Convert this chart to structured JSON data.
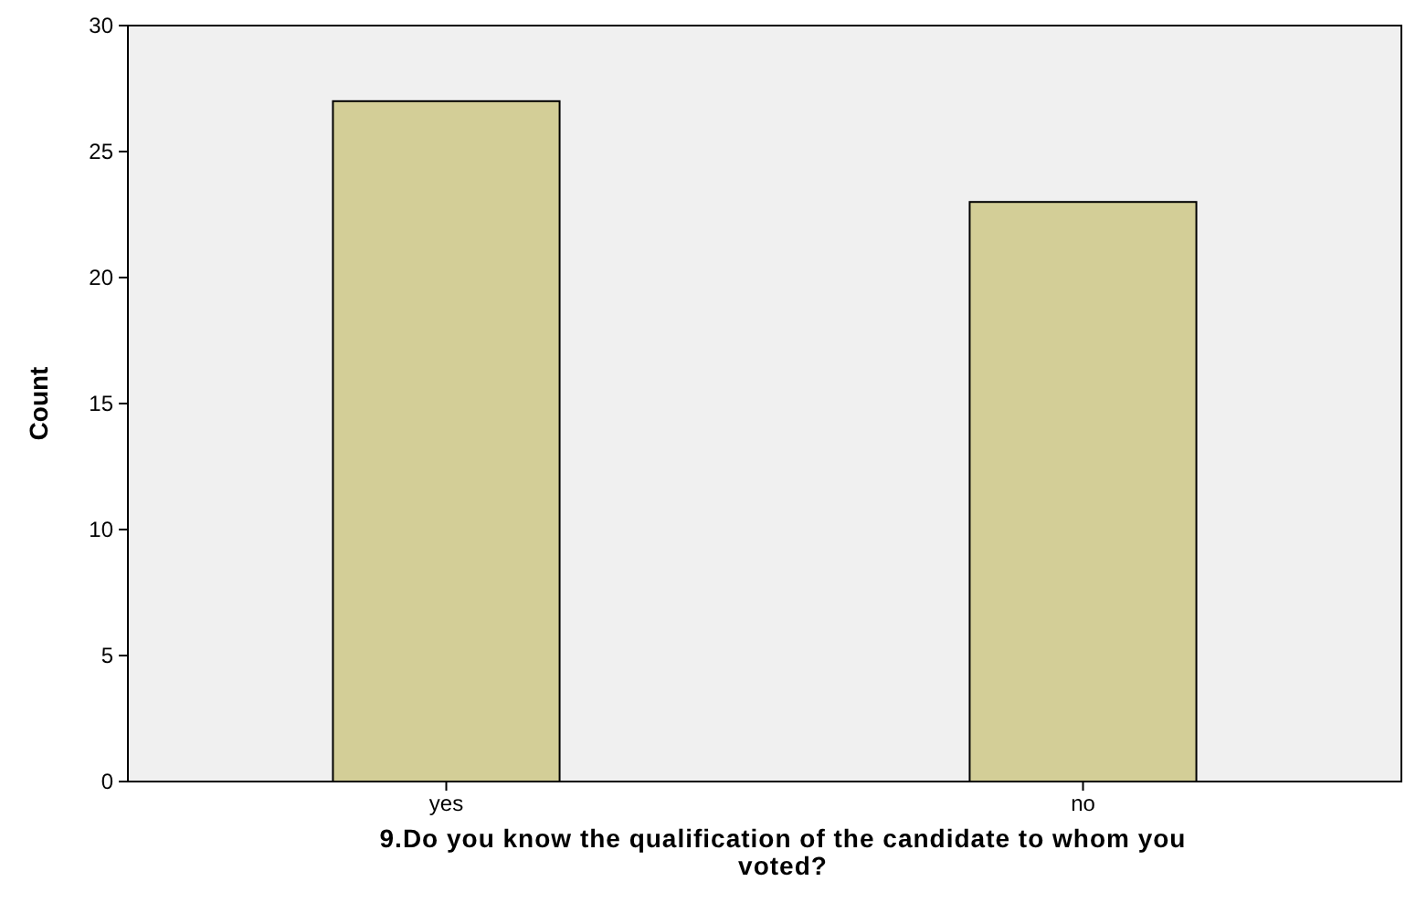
{
  "chart_data": {
    "type": "bar",
    "categories": [
      "yes",
      "no"
    ],
    "values": [
      27,
      23
    ],
    "color": "#d3ce97",
    "xlabel": "9.Do you know the qualification of the candidate to whom you voted?",
    "ylabel": "Count",
    "ylim": [
      0,
      30
    ],
    "yticks": [
      0,
      5,
      10,
      15,
      20,
      25,
      30
    ],
    "grid": false
  }
}
